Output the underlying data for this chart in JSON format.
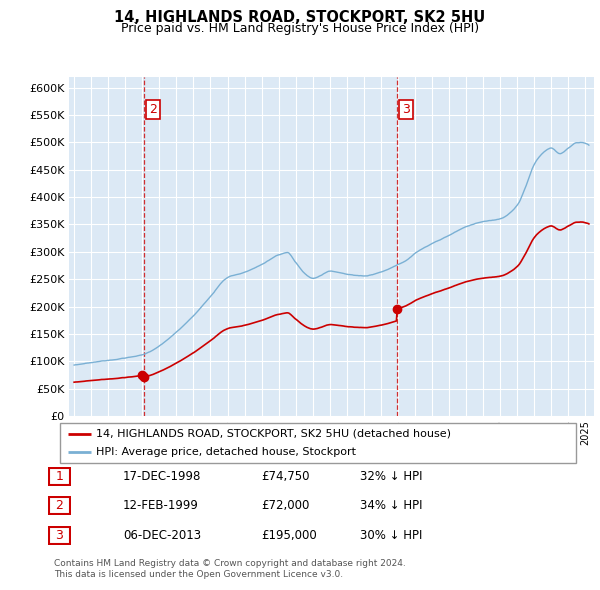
{
  "title": "14, HIGHLANDS ROAD, STOCKPORT, SK2 5HU",
  "subtitle": "Price paid vs. HM Land Registry's House Price Index (HPI)",
  "ylabel_ticks": [
    "£0",
    "£50K",
    "£100K",
    "£150K",
    "£200K",
    "£250K",
    "£300K",
    "£350K",
    "£400K",
    "£450K",
    "£500K",
    "£550K",
    "£600K"
  ],
  "ytick_vals": [
    0,
    50000,
    100000,
    150000,
    200000,
    250000,
    300000,
    350000,
    400000,
    450000,
    500000,
    550000,
    600000
  ],
  "ylim": [
    0,
    620000
  ],
  "xmin": 1994.7,
  "xmax": 2025.5,
  "sale_dates": [
    1998.96,
    1999.12,
    2013.92
  ],
  "sale_prices": [
    74750,
    72000,
    195000
  ],
  "red_line_color": "#cc0000",
  "blue_line_color": "#7ab0d4",
  "dot_color": "#cc0000",
  "vline_color": "#cc0000",
  "bg_color": "#dce9f5",
  "legend_line1": "14, HIGHLANDS ROAD, STOCKPORT, SK2 5HU (detached house)",
  "legend_line2": "HPI: Average price, detached house, Stockport",
  "table_entries": [
    {
      "num": "1",
      "date": "17-DEC-1998",
      "price": "£74,750",
      "pct": "32% ↓ HPI"
    },
    {
      "num": "2",
      "date": "12-FEB-1999",
      "price": "£72,000",
      "pct": "34% ↓ HPI"
    },
    {
      "num": "3",
      "date": "06-DEC-2013",
      "price": "£195,000",
      "pct": "30% ↓ HPI"
    }
  ],
  "footnote": "Contains HM Land Registry data © Crown copyright and database right 2024.\nThis data is licensed under the Open Government Licence v3.0."
}
